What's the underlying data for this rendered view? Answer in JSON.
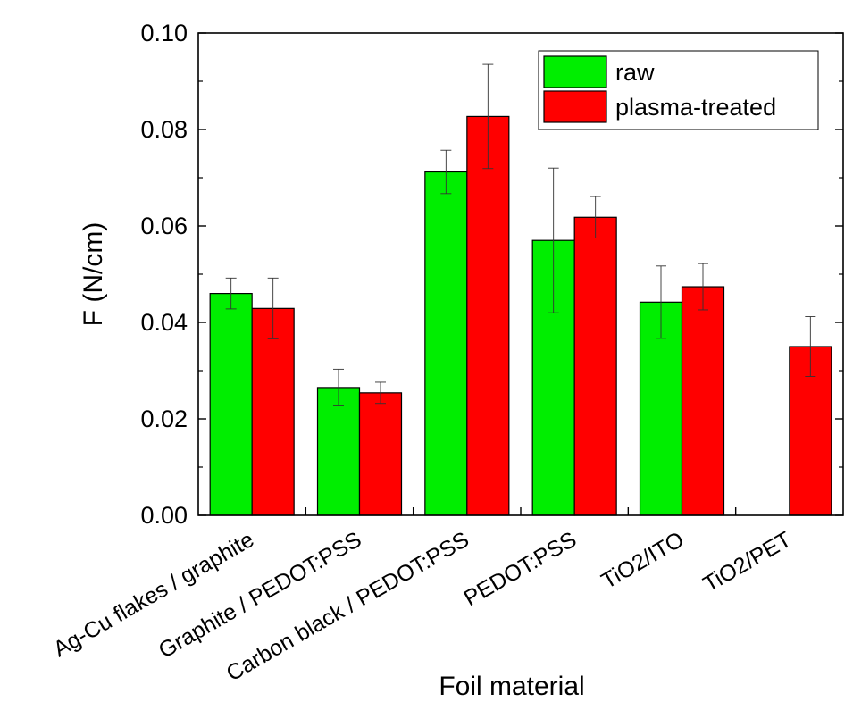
{
  "chart_data": {
    "type": "bar",
    "title": "",
    "xlabel": "Foil material",
    "ylabel": "F (N/cm)",
    "ylim": [
      0,
      0.1
    ],
    "yticks": [
      0.0,
      0.02,
      0.04,
      0.06,
      0.08,
      0.1
    ],
    "ytick_labels": [
      "0.00",
      "0.02",
      "0.04",
      "0.06",
      "0.08",
      "0.10"
    ],
    "categories": [
      "Ag-Cu flakes / graphite",
      "Graphite / PEDOT:PSS",
      "Carbon black / PEDOT:PSS",
      "PEDOT:PSS",
      "TiO2/ITO",
      "TiO2/PET"
    ],
    "series": [
      {
        "name": "raw",
        "color": "#00ee00",
        "values": [
          0.046,
          0.0265,
          0.0712,
          0.057,
          0.0442,
          null
        ],
        "errors": [
          0.0032,
          0.0038,
          0.0045,
          0.015,
          0.0075,
          null
        ]
      },
      {
        "name": "plasma-treated",
        "color": "#ff0000",
        "values": [
          0.0429,
          0.0254,
          0.0827,
          0.0618,
          0.0474,
          0.035
        ],
        "errors": [
          0.0063,
          0.0022,
          0.0108,
          0.0043,
          0.0048,
          0.0062
        ]
      }
    ],
    "legend_position": "top-right"
  }
}
